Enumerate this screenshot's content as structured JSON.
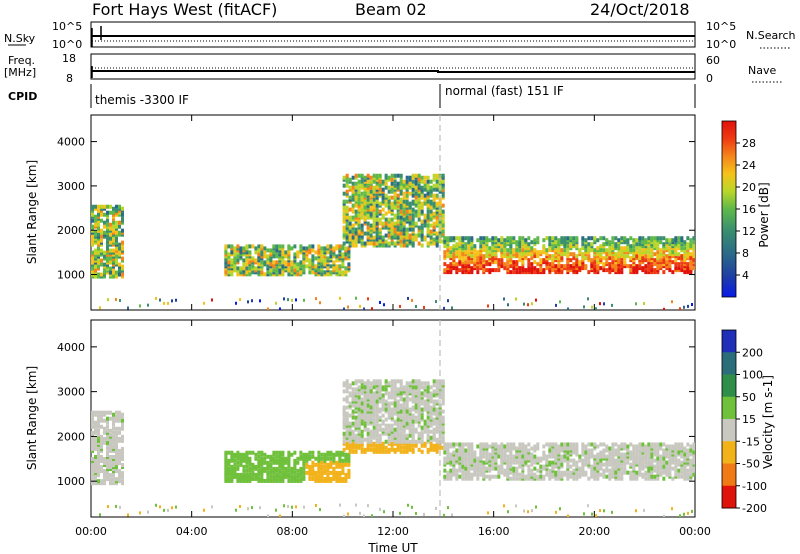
{
  "header": {
    "station": "Fort Hays West (fitACF)",
    "beam": "Beam 02",
    "date": "24/Oct/2018"
  },
  "panels": {
    "nsky_label": "N.Sky",
    "nsky_ticks": [
      "10^5",
      "10^0"
    ],
    "nsearch_label": "N.Search",
    "nsearch_ticks": [
      "10^5",
      "10^0"
    ],
    "freq_label": "Freq.",
    "freq_unit": "[MHz]",
    "freq_ticks": [
      "18",
      "8"
    ],
    "nave_label": "Nave",
    "nave_ticks": [
      "60",
      "0"
    ],
    "cpid_label": "CPID",
    "cpid_segments": [
      {
        "label": "themis -3300 IF",
        "start_hour": 0,
        "end_hour": 14
      },
      {
        "label": "normal (fast) 151 IF",
        "start_hour": 14,
        "end_hour": 24
      }
    ]
  },
  "chart_data": [
    {
      "type": "heatmap",
      "title": "",
      "quantity": "Power",
      "colorbar_label": "Power [dB]",
      "colorbar_ticks": [
        "28",
        "24",
        "20",
        "16",
        "12",
        "8",
        "4"
      ],
      "ylabel": "Slant Range [km]",
      "yticks": [
        "4000",
        "3000",
        "2000",
        "1000"
      ],
      "ylim": [
        200,
        4600
      ],
      "xlim": [
        0,
        24
      ],
      "echo_regions_approx": [
        {
          "t0": 0.0,
          "t1": 1.2,
          "r0": 1000,
          "r1": 2600
        },
        {
          "t0": 5.3,
          "t1": 10.3,
          "r0": 1050,
          "r1": 1700
        },
        {
          "t0": 10.0,
          "t1": 14.0,
          "r0": 1700,
          "r1": 3300
        },
        {
          "t0": 14.0,
          "t1": 24.0,
          "r0": 1100,
          "r1": 1900
        }
      ]
    },
    {
      "type": "heatmap",
      "title": "",
      "quantity": "Velocity",
      "colorbar_label": "Velocity [m s-1]",
      "colorbar_ticks": [
        "200",
        "100",
        "50",
        "15",
        "-15",
        "-50",
        "-100",
        "-200"
      ],
      "ylabel": "Slant Range [km]",
      "yticks": [
        "4000",
        "3000",
        "2000",
        "1000"
      ],
      "xlabel": "Time UT",
      "xticks": [
        "00:00",
        "04:00",
        "08:00",
        "12:00",
        "16:00",
        "20:00",
        "00:00"
      ],
      "ylim": [
        200,
        4600
      ],
      "xlim": [
        0,
        24
      ]
    }
  ],
  "colors": {
    "power_scale": [
      "#0a1ae8",
      "#1f3fa3",
      "#2b6b87",
      "#3a8f6e",
      "#5fb84a",
      "#b9d62a",
      "#f5c21a",
      "#f5851a",
      "#ee3a12",
      "#e0120c"
    ],
    "velocity_scale": [
      "#1f2fb8",
      "#2b6e7a",
      "#2f8f4a",
      "#6fc03a",
      "#c8c8c0",
      "#f2b21a",
      "#f07a15",
      "#e0120c"
    ],
    "cpid_divider": "#c0c0c0"
  }
}
